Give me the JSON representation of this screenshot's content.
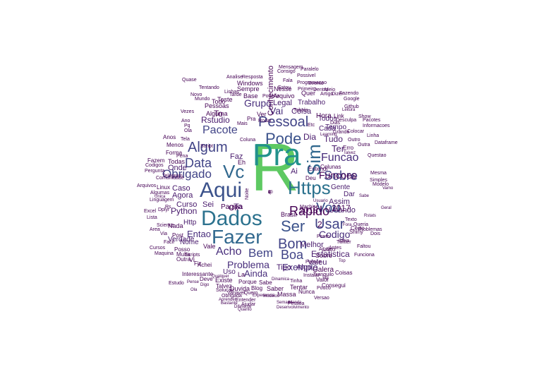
{
  "words": [
    {
      "text": "R",
      "color": "#5ec962"
    },
    {
      "text": "Pra",
      "color": "#21918c"
    },
    {
      "text": "Dados",
      "color": "#2c728e"
    },
    {
      "text": "Fazer",
      "color": "#31688e"
    },
    {
      "text": "Https",
      "color": "#2c728e"
    },
    {
      "text": "Aqui",
      "color": "#3b528b"
    },
    {
      "text": "Vc",
      "color": "#31688e"
    },
    {
      "text": "Sim",
      "color": "#31688e"
    },
    {
      "text": "Pode",
      "color": "#3b528b"
    },
    {
      "text": "Ser",
      "color": "#3b528b"
    },
    {
      "text": "Bom",
      "color": "#414487"
    },
    {
      "text": "Usar",
      "color": "#414487"
    },
    {
      "text": "Vou",
      "color": "#3b528b"
    },
    {
      "text": "Sobre",
      "color": "#414487"
    },
    {
      "text": "Algum",
      "color": "#414487"
    },
    {
      "text": "Pessoal",
      "color": "#414487"
    },
    {
      "text": "Obrigado",
      "color": "#414487"
    },
    {
      "text": "Data",
      "color": "#414487"
    },
    {
      "text": "Pacote",
      "color": "#414487"
    },
    {
      "text": "Funcao",
      "color": "#472d7b"
    },
    {
      "text": "Boa",
      "color": "#414487"
    },
    {
      "text": "Bem",
      "color": "#414487"
    },
    {
      "text": "Acho",
      "color": "#472d7b"
    },
    {
      "text": "Problema",
      "color": "#472d7b"
    },
    {
      "text": "Codigo",
      "color": "#472d7b"
    },
    {
      "text": "Exemplo",
      "color": "#472d7b"
    },
    {
      "text": "Grupo",
      "color": "#472d7b"
    },
    {
      "text": "Vai",
      "color": "#472d7b"
    },
    {
      "text": "Ainda",
      "color": "#472d7b"
    },
    {
      "text": "Entao",
      "color": "#472d7b"
    },
    {
      "text": "Python",
      "color": "#481a6c"
    },
    {
      "text": "Estatistica",
      "color": "#481a6c"
    },
    {
      "text": "Melhor",
      "color": "#481a6c"
    },
    {
      "text": "Tudo",
      "color": "#481a6c"
    },
    {
      "text": "Assim",
      "color": "#481a6c"
    },
    {
      "text": "Usando",
      "color": "#481a6c"
    },
    {
      "text": "Agora",
      "color": "#481a6c"
    },
    {
      "text": "Curso",
      "color": "#481a6c"
    },
    {
      "text": "Caso",
      "color": "#481a6c"
    },
    {
      "text": "Dia",
      "color": "#481a6c"
    },
    {
      "text": "Ter",
      "color": "#481a6c"
    },
    {
      "text": "Faz",
      "color": "#481a6c"
    },
    {
      "text": "Rstudio",
      "color": "#481a6c"
    },
    {
      "text": "Onde",
      "color": "#481a6c"
    },
    {
      "text": "Coisa",
      "color": "#481a6c"
    },
    {
      "text": "Gente",
      "color": "#481a6c"
    },
    {
      "text": "Tipo",
      "color": "#481a6c"
    },
    {
      "text": "Algo",
      "color": "#481a6c"
    },
    {
      "text": "Valeu",
      "color": "#481a6c"
    },
    {
      "text": "Legal",
      "color": "#481a6c"
    },
    {
      "text": "Trabalho",
      "color": "#481a6c"
    },
    {
      "text": "Tempo",
      "color": "#481a6c"
    },
    {
      "text": "Todos",
      "color": "#481a6c"
    },
    {
      "text": "Cada",
      "color": "#481a6c"
    },
    {
      "text": "Sei",
      "color": "#481a6c"
    },
    {
      "text": "Nome",
      "color": "#481a6c"
    },
    {
      "text": "Http",
      "color": "#481a6c"
    },
    {
      "text": "Verdade",
      "color": "#481a6c"
    },
    {
      "text": "Uso",
      "color": "#481a6c"
    },
    {
      "text": "Dar",
      "color": "#481a6c"
    },
    {
      "text": "Ta",
      "color": "#481a6c"
    },
    {
      "text": "Ai",
      "color": "#481a6c"
    },
    {
      "text": "Alguma",
      "color": "#440154"
    },
    {
      "text": "To",
      "color": "#440154"
    },
    {
      "text": "Ver",
      "color": "#440154"
    },
    {
      "text": "Quer",
      "color": "#440154"
    },
    {
      "text": "Nesse",
      "color": "#440154"
    },
    {
      "text": "Arquivo",
      "color": "#440154"
    },
    {
      "text": "Sempre",
      "color": "#440154"
    },
    {
      "text": "Windows",
      "color": "#440154"
    },
    {
      "text": "Base",
      "color": "#440154"
    },
    {
      "text": "Pessoas",
      "color": "#440154"
    },
    {
      "text": "Duvida",
      "color": "#440154"
    },
    {
      "text": "Blog",
      "color": "#440154"
    },
    {
      "text": "Saber",
      "color": "#440154"
    },
    {
      "text": "Massa",
      "color": "#440154"
    },
    {
      "text": "Tentar",
      "color": "#440154"
    },
    {
      "text": "Nunca",
      "color": "#440154"
    },
    {
      "text": "Galera",
      "color": "#440154"
    },
    {
      "text": "Coisas",
      "color": "#440154"
    },
    {
      "text": "Consegui",
      "color": "#440154"
    },
    {
      "text": "Livro",
      "color": "#440154"
    },
    {
      "text": "Certo",
      "color": "#440154"
    },
    {
      "text": "Shiny",
      "color": "#440154"
    },
    {
      "text": "Erro",
      "color": "#440154"
    },
    {
      "text": "Linux",
      "color": "#440154"
    },
    {
      "text": "Algumas",
      "color": "#440154"
    },
    {
      "text": "Linguagem",
      "color": "#440154"
    },
    {
      "text": "Dplyr",
      "color": "#440154"
    },
    {
      "text": "Nada",
      "color": "#440154"
    },
    {
      "text": "Post",
      "color": "#440154"
    },
    {
      "text": "Posso",
      "color": "#440154"
    },
    {
      "text": "Multa",
      "color": "#440154"
    },
    {
      "text": "Outra",
      "color": "#440154"
    },
    {
      "text": "Achei",
      "color": "#440154"
    },
    {
      "text": "Existe",
      "color": "#440154"
    },
    {
      "text": "Interessante",
      "color": "#440154"
    },
    {
      "text": "Deve",
      "color": "#440154"
    },
    {
      "text": "Porque",
      "color": "#440154"
    },
    {
      "text": "Sabe",
      "color": "#440154"
    },
    {
      "text": "Talvez",
      "color": "#440154"
    },
    {
      "text": "Solucao",
      "color": "#440154"
    },
    {
      "text": "Variavel",
      "color": "#440154"
    },
    {
      "text": "Quero",
      "color": "#440154"
    },
    {
      "text": "Ajudar",
      "color": "#440154"
    },
    {
      "text": "Todas",
      "color": "#440154"
    },
    {
      "text": "Forma",
      "color": "#440154"
    },
    {
      "text": "Menos",
      "color": "#440154"
    },
    {
      "text": "Anos",
      "color": "#440154"
    },
    {
      "text": "Pq",
      "color": "#440154"
    },
    {
      "text": "Ola",
      "color": "#440154"
    },
    {
      "text": "Ano",
      "color": "#440154"
    },
    {
      "text": "Vezes",
      "color": "#440154"
    },
    {
      "text": "Teste",
      "color": "#440154"
    },
    {
      "text": "Tarde",
      "color": "#440154"
    },
    {
      "text": "Todo",
      "color": "#440154"
    },
    {
      "text": "Valor",
      "color": "#440154"
    },
    {
      "text": "Pouco",
      "color": "#440154"
    },
    {
      "text": "Antes",
      "color": "#440154"
    },
    {
      "text": "Ideia",
      "color": "#440154"
    },
    {
      "text": "Funciona",
      "color": "#440154"
    },
    {
      "text": "Ajuda",
      "color": "#440154"
    },
    {
      "text": "Parece",
      "color": "#440154"
    },
    {
      "text": "Texto",
      "color": "#440154"
    },
    {
      "text": "Queria",
      "color": "#440154"
    },
    {
      "text": "Problemas",
      "color": "#440154"
    },
    {
      "text": "Dois",
      "color": "#440154"
    },
    {
      "text": "Simples",
      "color": "#440154"
    },
    {
      "text": "Modelo",
      "color": "#440154"
    },
    {
      "text": "Mesma",
      "color": "#440154"
    },
    {
      "text": "Questao",
      "color": "#440154"
    },
    {
      "text": "Colunas",
      "color": "#440154"
    },
    {
      "text": "Entendi",
      "color": "#440154"
    },
    {
      "text": "Deu",
      "color": "#440154"
    },
    {
      "text": "Link",
      "color": "#440154"
    },
    {
      "text": "Colocar",
      "color": "#440154"
    },
    {
      "text": "Outro",
      "color": "#440154"
    },
    {
      "text": "Outra",
      "color": "#440154"
    },
    {
      "text": "Linha",
      "color": "#440154"
    },
    {
      "text": "Dataframe",
      "color": "#440154"
    },
    {
      "text": "Informacoes",
      "color": "#440154"
    },
    {
      "text": "Github",
      "color": "#440154"
    },
    {
      "text": "Google",
      "color": "#440154"
    },
    {
      "text": "Fazendo",
      "color": "#440154"
    },
    {
      "text": "Artigo",
      "color": "#440154"
    },
    {
      "text": "Dizer",
      "color": "#440154"
    },
    {
      "text": "Primeiro",
      "color": "#440154"
    },
    {
      "text": "Dentro",
      "color": "#440154"
    },
    {
      "text": "Meio",
      "color": "#440154"
    },
    {
      "text": "Evento",
      "color": "#440154"
    },
    {
      "text": "Programacao",
      "color": "#440154"
    },
    {
      "text": "Fala",
      "color": "#440154"
    },
    {
      "text": "Possivel",
      "color": "#440154"
    },
    {
      "text": "Conhecimento",
      "color": "#440154"
    },
    {
      "text": "Analise",
      "color": "#440154"
    },
    {
      "text": "Resposta",
      "color": "#440154"
    },
    {
      "text": "Poderia",
      "color": "#440154"
    },
    {
      "text": "Novo",
      "color": "#440154"
    },
    {
      "text": "Mundo",
      "color": "#440154"
    },
    {
      "text": "Tentando",
      "color": "#440154"
    },
    {
      "text": "Linhas",
      "color": "#440154"
    },
    {
      "text": "Rodar",
      "color": "#440154"
    },
    {
      "text": "Mais",
      "color": "#440154"
    },
    {
      "text": "Pra",
      "color": "#440154"
    },
    {
      "text": "Coluna",
      "color": "#440154"
    },
    {
      "text": "Etc",
      "color": "#440154"
    },
    {
      "text": "Grande",
      "color": "#440154"
    },
    {
      "text": "Noite",
      "color": "#440154"
    },
    {
      "text": "Hora",
      "color": "#440154"
    },
    {
      "text": "Brasil",
      "color": "#440154"
    },
    {
      "text": "Vi",
      "color": "#440154"
    },
    {
      "text": "Fiz",
      "color": "#440154"
    },
    {
      "text": "Ok",
      "color": "#440154"
    },
    {
      "text": "Eh",
      "color": "#440154"
    },
    {
      "text": "La",
      "color": "#440154"
    },
    {
      "text": "In",
      "color": "#440154"
    },
    {
      "text": "Rs",
      "color": "#440154"
    },
    {
      "text": "Via",
      "color": "#440154"
    },
    {
      "text": "Area",
      "color": "#440154"
    },
    {
      "text": "Science",
      "color": "#440154"
    },
    {
      "text": "Excel",
      "color": "#440154"
    },
    {
      "text": "Cursos",
      "color": "#440154"
    },
    {
      "text": "Maquina",
      "color": "#440154"
    },
    {
      "text": "Arquivos",
      "color": "#440154"
    },
    {
      "text": "Pergunta",
      "color": "#440154"
    },
    {
      "text": "Comunidade",
      "color": "#440154"
    },
    {
      "text": "Telegram",
      "color": "#440154"
    },
    {
      "text": "Twitter",
      "color": "#440154"
    },
    {
      "text": "Facil",
      "color": "#440154"
    },
    {
      "text": "Estudo",
      "color": "#440154"
    },
    {
      "text": "Lista",
      "color": "#440154"
    },
    {
      "text": "Pena",
      "color": "#440154"
    },
    {
      "text": "Tela",
      "color": "#440154"
    },
    {
      "text": "Quase",
      "color": "#440154"
    },
    {
      "text": "Mensagem",
      "color": "#440154"
    },
    {
      "text": "Paralelo",
      "color": "#440154"
    },
    {
      "text": "Consigo",
      "color": "#440154"
    },
    {
      "text": "Show",
      "color": "#440154"
    },
    {
      "text": "Pacotes",
      "color": "#440154"
    },
    {
      "text": "Dias",
      "color": "#440154"
    },
    {
      "text": "Vamo",
      "color": "#440154"
    },
    {
      "text": "Pense",
      "color": "#440154"
    },
    {
      "text": "Ola",
      "color": "#440154"
    },
    {
      "text": "Scripts",
      "color": "#440154"
    },
    {
      "text": "Script",
      "color": "#440154"
    },
    {
      "text": "Estou",
      "color": "#440154"
    },
    {
      "text": "Desculpa",
      "color": "#440154"
    },
    {
      "text": "Machine",
      "color": "#440154"
    },
    {
      "text": "Learning",
      "color": "#440154"
    },
    {
      "text": "Geral",
      "color": "#440154"
    },
    {
      "text": "Fora",
      "color": "#440154"
    },
    {
      "text": "Talvez",
      "color": "#440154"
    },
    {
      "text": "Faltou",
      "color": "#440154"
    },
    {
      "text": "Leitura",
      "color": "#440154"
    },
    {
      "text": "Tabela",
      "color": "#440154"
    },
    {
      "text": "Ponto",
      "color": "#440154"
    },
    {
      "text": "Versao",
      "color": "#440154"
    },
    {
      "text": "Pessoa",
      "color": "#440154"
    },
    {
      "text": "Instalar",
      "color": "#440154"
    },
    {
      "text": "Tranquilo",
      "color": "#440154"
    },
    {
      "text": "Tinha",
      "color": "#440154"
    },
    {
      "text": "Semana",
      "color": "#440154"
    },
    {
      "text": "Obrigada",
      "color": "#440154"
    },
    {
      "text": "Entender",
      "color": "#440154"
    },
    {
      "text": "Aprender",
      "color": "#440154"
    },
    {
      "text": "Bastante",
      "color": "#440154"
    },
    {
      "text": "Diferente",
      "color": "#440154"
    },
    {
      "text": "Quanto",
      "color": "#440154"
    },
    {
      "text": "Manda",
      "color": "#440154"
    },
    {
      "text": "Digo",
      "color": "#440154"
    },
    {
      "text": "Qualquer",
      "color": "#440154"
    },
    {
      "text": "Dinamica",
      "color": "#440154"
    },
    {
      "text": "Experiencia",
      "color": "#440154"
    },
    {
      "text": "Modelos",
      "color": "#440154"
    },
    {
      "text": "Desenvolvimento",
      "color": "#440154"
    },
    {
      "text": "Sql",
      "color": "#440154"
    },
    {
      "text": "Top",
      "color": "#440154"
    },
    {
      "text": "Rstats",
      "color": "#440154"
    },
    {
      "text": "Sabe",
      "color": "#440154"
    },
    {
      "text": "Usuario",
      "color": "#440154"
    },
    {
      "text": "Codigos",
      "color": "#440154"
    },
    {
      "text": "Unica",
      "color": "#440154"
    },
    {
      "text": "Sobre",
      "color": "#440154"
    },
    {
      "text": "Fazem",
      "color": "#440154"
    },
    {
      "text": "Funcoes",
      "color": "#440154"
    },
    {
      "text": "Rapido",
      "color": "#440154"
    },
    {
      "text": "Pagina",
      "color": "#440154"
    },
    {
      "text": "Vale",
      "color": "#440154"
    },
    {
      "text": "2017",
      "color": "#440154"
    },
    {
      "text": "2018",
      "color": "#440154"
    },
    {
      "text": "2",
      "color": "#440154"
    },
    {
      "text": "1",
      "color": "#440154"
    },
    {
      "text": "3",
      "color": "#440154"
    },
    {
      "text": "10",
      "color": "#440154"
    },
    {
      "text": "C",
      "color": "#440154"
    },
    {
      "text": "X",
      "color": "#440154"
    },
    {
      "text": "Q",
      "color": "#440154"
    }
  ]
}
